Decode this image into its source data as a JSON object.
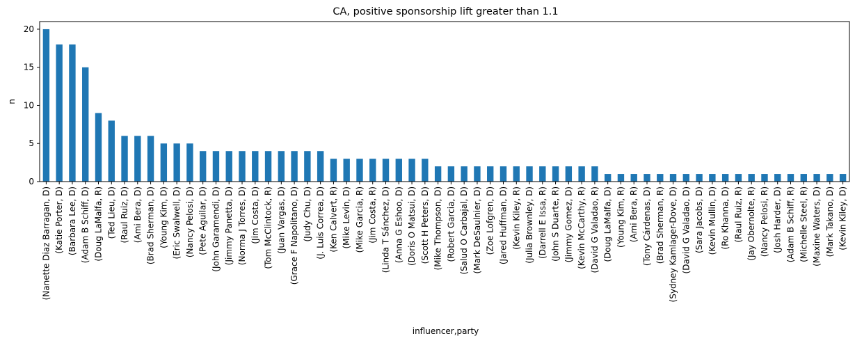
{
  "chart_data": {
    "type": "bar",
    "title": "CA, positive sponsorship lift greater than 1.1",
    "xlabel": "influencer,party",
    "ylabel": "n",
    "ylim": [
      0,
      21
    ],
    "yticks": [
      0,
      5,
      10,
      15,
      20
    ],
    "grid": false,
    "bar_color": "#1f77b4",
    "categories": [
      "(Nanette Diaz Barragan, D)",
      "(Katie Porter, D)",
      "(Barbara Lee, D)",
      "(Adam B Schiff, D)",
      "(Doug LaMalfa, R)",
      "(Ted Lieu, D)",
      "(Raul Ruiz, D)",
      "(Ami Bera, D)",
      "(Brad Sherman, D)",
      "(Young Kim, D)",
      "(Eric Swalwell, D)",
      "(Nancy Pelosi, D)",
      "(Pete Aguilar, D)",
      "(John Garamendi, D)",
      "(Jimmy Panetta, D)",
      "(Norma J Torres, D)",
      "(Jim Costa, D)",
      "(Tom McClintock, R)",
      "(Juan Vargas, D)",
      "(Grace F Napolitano, D)",
      "(Judy Chu, D)",
      "(J. Luis Correa, D)",
      "(Ken Calvert, R)",
      "(Mike Levin, D)",
      "(Mike Garcia, R)",
      "(Jim Costa, R)",
      "(Linda T Sánchez, D)",
      "(Anna G Eshoo, D)",
      "(Doris O Matsui, D)",
      "(Scott H Peters, D)",
      "(Mike Thompson, D)",
      "(Robert Garcia, D)",
      "(Salud O Carbajal, D)",
      "(Mark DeSaulnier, D)",
      "(Zoe Lofgren, D)",
      "(Jared Huffman, D)",
      "(Kevin Kiley, R)",
      "(Julia Brownley, D)",
      "(Darrell E Issa, R)",
      "(John S Duarte, R)",
      "(Jimmy Gomez, D)",
      "(Kevin McCarthy, R)",
      "(David G Valadao, R)",
      "(Doug LaMalfa, D)",
      "(Young Kim, R)",
      "(Ami Bera, R)",
      "(Tony Cárdenas, D)",
      "(Brad Sherman, R)",
      "(Sydney Kamlager-Dove, D)",
      "(David G Valadao, D)",
      "(Sara Jacobs, D)",
      "(Kevin Mullin, D)",
      "(Ro Khanna, D)",
      "(Raul Ruiz, R)",
      "(Jay Obernolte, R)",
      "(Nancy Pelosi, R)",
      "(Josh Harder, D)",
      "(Adam B Schiff, R)",
      "(Michelle Steel, R)",
      "(Maxine Waters, D)",
      "(Mark Takano, D)",
      "(Kevin Kiley, D)"
    ],
    "values": [
      20,
      18,
      18,
      15,
      9,
      8,
      6,
      6,
      6,
      5,
      5,
      5,
      4,
      4,
      4,
      4,
      4,
      4,
      4,
      4,
      4,
      4,
      3,
      3,
      3,
      3,
      3,
      3,
      3,
      3,
      2,
      2,
      2,
      2,
      2,
      2,
      2,
      2,
      2,
      2,
      2,
      2,
      2,
      1,
      1,
      1,
      1,
      1,
      1,
      1,
      1,
      1,
      1,
      1,
      1,
      1,
      1,
      1,
      1,
      1,
      1,
      1
    ]
  }
}
